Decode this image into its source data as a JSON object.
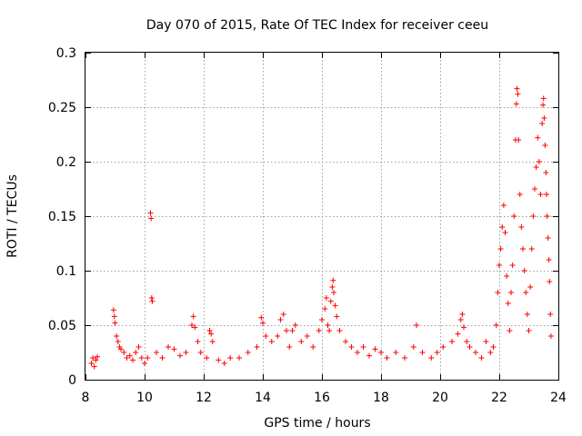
{
  "chart_data": {
    "type": "scatter",
    "title": "Day 070 of 2015, Rate Of TEC Index for receiver ceeu",
    "xlabel": "GPS time / hours",
    "ylabel": "ROTI / TECUs",
    "xlim": [
      8,
      24
    ],
    "ylim": [
      0,
      0.3
    ],
    "xticks": [
      8,
      10,
      12,
      14,
      16,
      18,
      20,
      22,
      24
    ],
    "yticks": [
      0,
      0.05,
      0.1,
      0.15,
      0.2,
      0.25,
      0.3
    ],
    "xtick_labels": [
      "8",
      "10",
      "12",
      "14",
      "16",
      "18",
      "20",
      "22",
      "24"
    ],
    "ytick_labels": [
      "0",
      "0.05",
      "0.1",
      "0.15",
      "0.2",
      "0.25",
      "0.3"
    ],
    "grid": true,
    "marker": "+",
    "color": "#ff0000",
    "series": [
      {
        "name": "ROTI",
        "points": [
          [
            8.2,
            0.015
          ],
          [
            8.25,
            0.02
          ],
          [
            8.3,
            0.012
          ],
          [
            8.35,
            0.018
          ],
          [
            8.4,
            0.021
          ],
          [
            8.95,
            0.064
          ],
          [
            8.98,
            0.058
          ],
          [
            9.0,
            0.052
          ],
          [
            9.05,
            0.04
          ],
          [
            9.1,
            0.035
          ],
          [
            9.15,
            0.03
          ],
          [
            9.2,
            0.028
          ],
          [
            9.3,
            0.025
          ],
          [
            9.4,
            0.02
          ],
          [
            9.5,
            0.022
          ],
          [
            9.6,
            0.018
          ],
          [
            9.7,
            0.025
          ],
          [
            9.8,
            0.03
          ],
          [
            9.9,
            0.02
          ],
          [
            10.0,
            0.015
          ],
          [
            10.1,
            0.02
          ],
          [
            10.2,
            0.153
          ],
          [
            10.22,
            0.148
          ],
          [
            10.24,
            0.075
          ],
          [
            10.26,
            0.072
          ],
          [
            10.4,
            0.025
          ],
          [
            10.6,
            0.02
          ],
          [
            10.8,
            0.03
          ],
          [
            11.0,
            0.028
          ],
          [
            11.2,
            0.022
          ],
          [
            11.4,
            0.025
          ],
          [
            11.6,
            0.05
          ],
          [
            11.65,
            0.058
          ],
          [
            11.7,
            0.048
          ],
          [
            11.8,
            0.035
          ],
          [
            11.9,
            0.025
          ],
          [
            12.1,
            0.02
          ],
          [
            12.2,
            0.045
          ],
          [
            12.25,
            0.042
          ],
          [
            12.3,
            0.035
          ],
          [
            12.5,
            0.018
          ],
          [
            12.7,
            0.015
          ],
          [
            12.9,
            0.02
          ],
          [
            13.2,
            0.02
          ],
          [
            13.5,
            0.025
          ],
          [
            13.8,
            0.03
          ],
          [
            13.95,
            0.057
          ],
          [
            14.0,
            0.052
          ],
          [
            14.1,
            0.04
          ],
          [
            14.3,
            0.035
          ],
          [
            14.5,
            0.04
          ],
          [
            14.6,
            0.055
          ],
          [
            14.7,
            0.06
          ],
          [
            14.8,
            0.045
          ],
          [
            14.9,
            0.03
          ],
          [
            15.0,
            0.045
          ],
          [
            15.1,
            0.05
          ],
          [
            15.3,
            0.035
          ],
          [
            15.5,
            0.04
          ],
          [
            15.7,
            0.03
          ],
          [
            15.9,
            0.045
          ],
          [
            16.0,
            0.055
          ],
          [
            16.1,
            0.065
          ],
          [
            16.15,
            0.075
          ],
          [
            16.2,
            0.05
          ],
          [
            16.25,
            0.045
          ],
          [
            16.3,
            0.072
          ],
          [
            16.35,
            0.085
          ],
          [
            16.38,
            0.091
          ],
          [
            16.4,
            0.08
          ],
          [
            16.45,
            0.068
          ],
          [
            16.5,
            0.058
          ],
          [
            16.6,
            0.045
          ],
          [
            16.8,
            0.035
          ],
          [
            17.0,
            0.03
          ],
          [
            17.2,
            0.025
          ],
          [
            17.4,
            0.03
          ],
          [
            17.6,
            0.022
          ],
          [
            17.8,
            0.028
          ],
          [
            18.0,
            0.025
          ],
          [
            18.2,
            0.02
          ],
          [
            18.5,
            0.025
          ],
          [
            18.8,
            0.02
          ],
          [
            19.1,
            0.03
          ],
          [
            19.2,
            0.05
          ],
          [
            19.4,
            0.025
          ],
          [
            19.7,
            0.02
          ],
          [
            19.9,
            0.025
          ],
          [
            20.1,
            0.03
          ],
          [
            20.4,
            0.035
          ],
          [
            20.6,
            0.042
          ],
          [
            20.7,
            0.055
          ],
          [
            20.75,
            0.06
          ],
          [
            20.8,
            0.048
          ],
          [
            20.9,
            0.035
          ],
          [
            21.0,
            0.03
          ],
          [
            21.2,
            0.025
          ],
          [
            21.4,
            0.02
          ],
          [
            21.55,
            0.035
          ],
          [
            21.7,
            0.025
          ],
          [
            21.8,
            0.03
          ],
          [
            21.9,
            0.05
          ],
          [
            21.95,
            0.08
          ],
          [
            22.0,
            0.105
          ],
          [
            22.05,
            0.12
          ],
          [
            22.1,
            0.14
          ],
          [
            22.15,
            0.16
          ],
          [
            22.2,
            0.135
          ],
          [
            22.25,
            0.095
          ],
          [
            22.3,
            0.07
          ],
          [
            22.35,
            0.045
          ],
          [
            22.4,
            0.08
          ],
          [
            22.45,
            0.105
          ],
          [
            22.5,
            0.15
          ],
          [
            22.55,
            0.22
          ],
          [
            22.58,
            0.253
          ],
          [
            22.6,
            0.267
          ],
          [
            22.63,
            0.262
          ],
          [
            22.65,
            0.22
          ],
          [
            22.7,
            0.17
          ],
          [
            22.75,
            0.14
          ],
          [
            22.8,
            0.12
          ],
          [
            22.85,
            0.1
          ],
          [
            22.9,
            0.08
          ],
          [
            22.95,
            0.06
          ],
          [
            23.0,
            0.045
          ],
          [
            23.05,
            0.085
          ],
          [
            23.1,
            0.12
          ],
          [
            23.15,
            0.15
          ],
          [
            23.2,
            0.175
          ],
          [
            23.25,
            0.195
          ],
          [
            23.3,
            0.222
          ],
          [
            23.35,
            0.2
          ],
          [
            23.4,
            0.17
          ],
          [
            23.45,
            0.235
          ],
          [
            23.48,
            0.252
          ],
          [
            23.5,
            0.258
          ],
          [
            23.52,
            0.24
          ],
          [
            23.55,
            0.215
          ],
          [
            23.58,
            0.19
          ],
          [
            23.6,
            0.17
          ],
          [
            23.62,
            0.15
          ],
          [
            23.65,
            0.13
          ],
          [
            23.68,
            0.11
          ],
          [
            23.7,
            0.09
          ],
          [
            23.73,
            0.06
          ],
          [
            23.75,
            0.04
          ]
        ]
      }
    ]
  }
}
